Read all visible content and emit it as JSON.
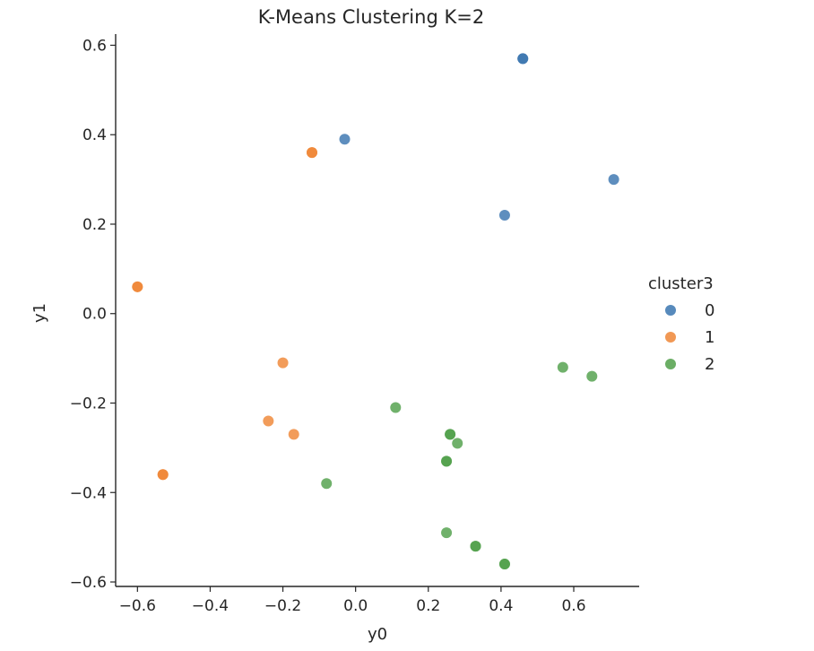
{
  "chart_data": {
    "type": "scatter",
    "title": "K-Means Clustering K=2",
    "xlabel": "y0",
    "ylabel": "y1",
    "xlim": [
      -0.66,
      0.78
    ],
    "ylim": [
      -0.61,
      0.625
    ],
    "xticks": [
      -0.6,
      -0.4,
      -0.2,
      0.0,
      0.2,
      0.4,
      0.6
    ],
    "xtick_labels": [
      "−0.6",
      "−0.4",
      "−0.2",
      "0.0",
      "0.2",
      "0.4",
      "0.6"
    ],
    "yticks": [
      -0.6,
      -0.4,
      -0.2,
      0.0,
      0.2,
      0.4,
      0.6
    ],
    "ytick_labels": [
      "−0.6",
      "−0.4",
      "−0.2",
      "0.0",
      "0.2",
      "0.4",
      "0.6"
    ],
    "grid": false,
    "legend_title": "cluster3",
    "legend_position": "right",
    "series": [
      {
        "name": "0",
        "color": "#3a75b0",
        "points": [
          [
            0.46,
            0.57
          ],
          [
            0.46,
            0.57
          ],
          [
            -0.03,
            0.39
          ],
          [
            0.71,
            0.3
          ],
          [
            0.41,
            0.22
          ]
        ]
      },
      {
        "name": "1",
        "color": "#ef8636",
        "points": [
          [
            -0.12,
            0.36
          ],
          [
            -0.12,
            0.36
          ],
          [
            -0.6,
            0.06
          ],
          [
            -0.6,
            0.06
          ],
          [
            -0.2,
            -0.11
          ],
          [
            -0.24,
            -0.24
          ],
          [
            -0.17,
            -0.27
          ],
          [
            -0.53,
            -0.36
          ],
          [
            -0.53,
            -0.36
          ]
        ]
      },
      {
        "name": "2",
        "color": "#51a04a",
        "points": [
          [
            0.57,
            -0.12
          ],
          [
            0.65,
            -0.14
          ],
          [
            0.11,
            -0.21
          ],
          [
            0.26,
            -0.27
          ],
          [
            0.26,
            -0.27
          ],
          [
            0.28,
            -0.29
          ],
          [
            0.25,
            -0.33
          ],
          [
            0.25,
            -0.33
          ],
          [
            -0.08,
            -0.38
          ],
          [
            0.25,
            -0.49
          ],
          [
            0.33,
            -0.52
          ],
          [
            0.33,
            -0.52
          ],
          [
            0.41,
            -0.56
          ],
          [
            0.41,
            -0.56
          ]
        ]
      }
    ]
  }
}
